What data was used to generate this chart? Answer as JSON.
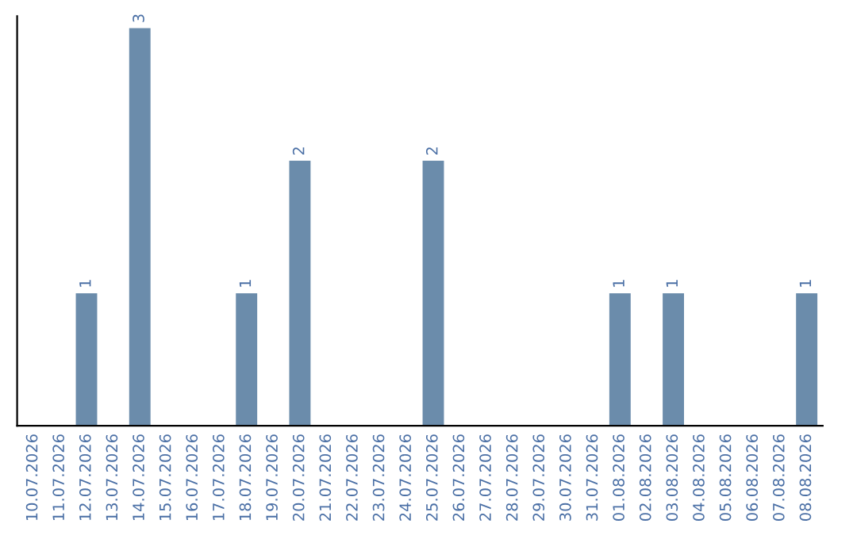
{
  "chart_data": {
    "type": "bar",
    "categories": [
      "10.07.2026",
      "11.07.2026",
      "12.07.2026",
      "13.07.2026",
      "14.07.2026",
      "15.07.2026",
      "16.07.2026",
      "17.07.2026",
      "18.07.2026",
      "19.07.2026",
      "20.07.2026",
      "21.07.2026",
      "22.07.2026",
      "23.07.2026",
      "24.07.2026",
      "25.07.2026",
      "26.07.2026",
      "27.07.2026",
      "28.07.2026",
      "29.07.2026",
      "30.07.2026",
      "31.07.2026",
      "01.08.2026",
      "02.08.2026",
      "03.08.2026",
      "04.08.2026",
      "05.08.2026",
      "06.08.2026",
      "07.08.2026",
      "08.08.2026"
    ],
    "values": [
      0,
      0,
      1,
      0,
      3,
      0,
      0,
      0,
      1,
      0,
      2,
      0,
      0,
      0,
      0,
      2,
      0,
      0,
      0,
      0,
      0,
      0,
      1,
      0,
      1,
      0,
      0,
      0,
      0,
      1
    ],
    "value_labels": [
      null,
      null,
      "1",
      null,
      "3",
      null,
      null,
      null,
      "1",
      null,
      "2",
      null,
      null,
      null,
      null,
      "2",
      null,
      null,
      null,
      null,
      null,
      null,
      "1",
      null,
      "1",
      null,
      null,
      null,
      null,
      "1"
    ],
    "color": "#6b8cab",
    "tick_labels": "x",
    "grid": false,
    "legend": false
  }
}
